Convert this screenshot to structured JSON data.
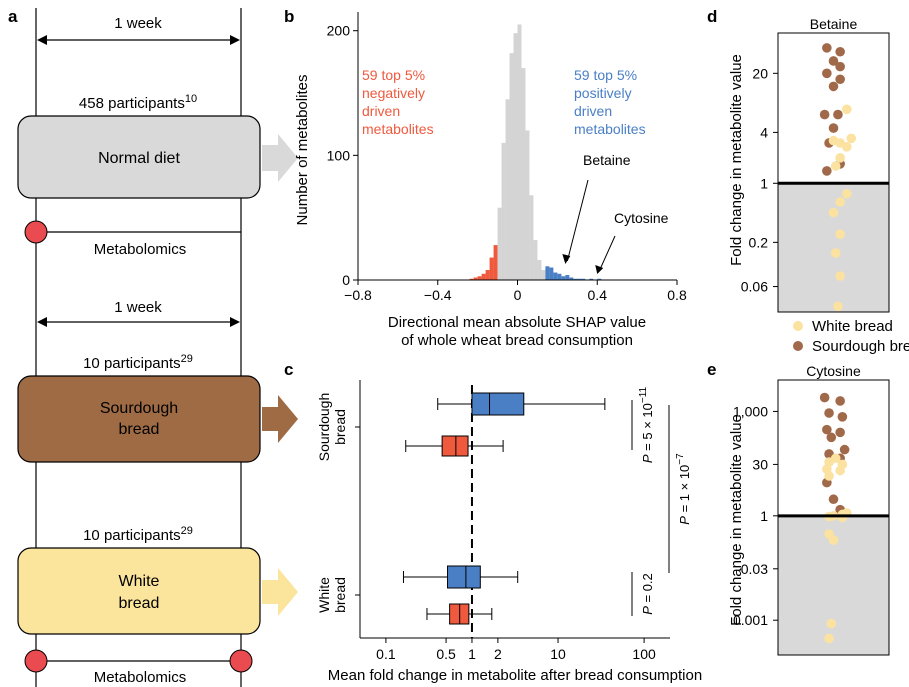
{
  "panel_a": {
    "letter": "a",
    "week_top": "1 week",
    "participants_normal": "458 participants",
    "participants_normal_sup": "10",
    "normal_box": "Normal diet",
    "metabolomics_1": "Metabolomics",
    "week_mid": "1 week",
    "participants_sourdough": "10 participants",
    "participants_sourdough_sup": "29",
    "sourdough_box_line1": "Sourdough",
    "sourdough_box_line2": "bread",
    "participants_white": "10 participants",
    "participants_white_sup": "29",
    "white_box_line1": "White",
    "white_box_line2": "bread",
    "metabolomics_2": "Metabolomics",
    "colors": {
      "normal": "#d9d9d9",
      "sourdough": "#9e6b45",
      "white": "#fbe49b",
      "circle": "#ea4b50"
    }
  },
  "chart_data": [
    {
      "panel": "b",
      "type": "bar",
      "ylabel": "Number of metabolites",
      "xlabel_line1": "Directional mean absolute SHAP value",
      "xlabel_line2": "of whole wheat bread consumption",
      "xlim": [
        -0.8,
        0.8
      ],
      "ylim": [
        0,
        215
      ],
      "xticks": [
        "−0.8",
        "−0.4",
        "0",
        "0.4",
        "0.8"
      ],
      "xtick_values": [
        -0.8,
        -0.4,
        0,
        0.4,
        0.8
      ],
      "yticks": [
        "0",
        "100",
        "200"
      ],
      "ytick_values": [
        0,
        100,
        200
      ],
      "bin_width": 0.02,
      "bins": [
        {
          "x0": -0.24,
          "count": 1,
          "group": "negative"
        },
        {
          "x0": -0.22,
          "count": 2,
          "group": "negative"
        },
        {
          "x0": -0.2,
          "count": 3,
          "group": "negative"
        },
        {
          "x0": -0.18,
          "count": 5,
          "group": "negative"
        },
        {
          "x0": -0.16,
          "count": 8,
          "group": "negative"
        },
        {
          "x0": -0.14,
          "count": 18,
          "group": "negative"
        },
        {
          "x0": -0.12,
          "count": 28,
          "group": "negative"
        },
        {
          "x0": -0.1,
          "count": 58,
          "group": "other"
        },
        {
          "x0": -0.08,
          "count": 110,
          "group": "other"
        },
        {
          "x0": -0.06,
          "count": 145,
          "group": "other"
        },
        {
          "x0": -0.04,
          "count": 182,
          "group": "other"
        },
        {
          "x0": -0.02,
          "count": 198,
          "group": "other"
        },
        {
          "x0": 0.0,
          "count": 205,
          "group": "other"
        },
        {
          "x0": 0.02,
          "count": 170,
          "group": "other"
        },
        {
          "x0": 0.04,
          "count": 120,
          "group": "other"
        },
        {
          "x0": 0.06,
          "count": 68,
          "group": "other"
        },
        {
          "x0": 0.08,
          "count": 32,
          "group": "other"
        },
        {
          "x0": 0.1,
          "count": 16,
          "group": "other"
        },
        {
          "x0": 0.12,
          "count": 8,
          "group": "other"
        },
        {
          "x0": 0.14,
          "count": 11,
          "group": "positive"
        },
        {
          "x0": 0.16,
          "count": 10,
          "group": "positive"
        },
        {
          "x0": 0.18,
          "count": 6,
          "group": "positive"
        },
        {
          "x0": 0.2,
          "count": 5,
          "group": "positive"
        },
        {
          "x0": 0.22,
          "count": 3,
          "group": "positive"
        },
        {
          "x0": 0.24,
          "count": 4,
          "group": "positive"
        },
        {
          "x0": 0.26,
          "count": 2,
          "group": "positive"
        },
        {
          "x0": 0.28,
          "count": 1,
          "group": "positive"
        },
        {
          "x0": 0.3,
          "count": 1,
          "group": "positive"
        },
        {
          "x0": 0.32,
          "count": 1,
          "group": "positive"
        },
        {
          "x0": 0.36,
          "count": 1,
          "group": "positive"
        },
        {
          "x0": 0.4,
          "count": 1,
          "group": "positive"
        }
      ],
      "annotation_negative": [
        "59 top 5%",
        "negatively",
        "driven",
        "metabolites"
      ],
      "annotation_positive": [
        "59 top 5%",
        "positively",
        "driven",
        "metabolites"
      ],
      "arrow_betaine": {
        "label": "Betaine",
        "x": 0.24,
        "y": 12
      },
      "arrow_cytosine": {
        "label": "Cytosine",
        "x": 0.4,
        "y": 4
      },
      "colors": {
        "negative": "#ef5a3e",
        "positive": "#4a7fc6",
        "other": "#d4d4d4"
      }
    },
    {
      "panel": "c",
      "type": "box",
      "xlabel": "Mean fold change in metabolite after bread consumption",
      "xscale": "log",
      "xlim": [
        0.05,
        200
      ],
      "xticks": [
        "0.1",
        "0.5",
        "1",
        "2",
        "10",
        "100"
      ],
      "xtick_values": [
        0.1,
        0.5,
        1,
        2,
        10,
        100
      ],
      "reference_line": 1,
      "groups": [
        {
          "label_line1": "Sourdough",
          "label_line2": "bread",
          "boxes": [
            {
              "color": "positive",
              "whisker_low": 0.4,
              "q1": 1.0,
              "median": 1.6,
              "q3": 4.0,
              "whisker_high": 35
            },
            {
              "color": "negative",
              "whisker_low": 0.17,
              "q1": 0.45,
              "median": 0.65,
              "q3": 0.9,
              "whisker_high": 2.3
            }
          ]
        },
        {
          "label_line1": "White",
          "label_line2": "bread",
          "boxes": [
            {
              "color": "positive",
              "whisker_low": 0.16,
              "q1": 0.52,
              "median": 0.85,
              "q3": 1.25,
              "whisker_high": 3.4
            },
            {
              "color": "negative",
              "whisker_low": 0.3,
              "q1": 0.55,
              "median": 0.72,
              "q3": 0.92,
              "whisker_high": 1.7
            }
          ]
        }
      ],
      "pvalues": [
        {
          "text": "P = 5 × 10",
          "sup": "−11"
        },
        {
          "text": "P = 1 × 10",
          "sup": "−7"
        },
        {
          "text": "P = 0.2",
          "sup": ""
        }
      ],
      "colors": {
        "negative": "#ef5a3e",
        "positive": "#4a7fc6"
      }
    },
    {
      "panel": "d",
      "type": "scatter",
      "title": "Betaine",
      "ylabel": "Fold change in metabolite value",
      "yscale": "log",
      "ylim": [
        0.03,
        60
      ],
      "yticks": [
        "20",
        "4",
        "1",
        "0.2",
        "0.06"
      ],
      "ytick_values": [
        20,
        4,
        1,
        0.2,
        0.06
      ],
      "reference_line": 1,
      "series": [
        {
          "name": "Sourdough bread",
          "color": "#a0694a",
          "x": [
            0.44,
            0.56,
            0.5,
            0.56,
            0.44,
            0.56,
            0.5,
            0.42,
            0.54,
            0.5,
            0.46,
            0.56,
            0.44
          ],
          "y": [
            40,
            36,
            28,
            24,
            20,
            17,
            14,
            6.5,
            6.5,
            4.5,
            3,
            1.7,
            1.4
          ]
        },
        {
          "name": "White bread",
          "color": "#fbe2a0",
          "x": [
            0.62,
            0.66,
            0.5,
            0.56,
            0.62,
            0.56,
            0.52,
            0.62,
            0.56,
            0.5,
            0.56,
            0.52,
            0.56,
            0.54
          ],
          "y": [
            7.5,
            3.4,
            3.2,
            3,
            2.7,
            2,
            1.6,
            0.75,
            0.6,
            0.45,
            0.25,
            0.15,
            0.08,
            0.035
          ]
        }
      ],
      "legend": [
        "White bread",
        "Sourdough bread"
      ]
    },
    {
      "panel": "e",
      "type": "scatter",
      "title": "Cytosine",
      "ylabel": "Fold change in metabolite value",
      "yscale": "log",
      "ylim": [
        0.0001,
        8000
      ],
      "yticks": [
        "1,000",
        "30",
        "1",
        "0.03",
        "0.001"
      ],
      "ytick_values": [
        1000,
        30,
        1,
        0.03,
        0.001
      ],
      "reference_line": 1,
      "series": [
        {
          "name": "Sourdough bread",
          "color": "#a0694a",
          "x": [
            0.42,
            0.56,
            0.46,
            0.58,
            0.44,
            0.56,
            0.48,
            0.6,
            0.46,
            0.56,
            0.44,
            0.5,
            0.56
          ],
          "y": [
            2500,
            2000,
            900,
            700,
            300,
            250,
            180,
            80,
            60,
            45,
            9,
            3,
            1.5
          ]
        },
        {
          "name": "White bread",
          "color": "#fbe2a0",
          "x": [
            0.52,
            0.46,
            0.58,
            0.44,
            0.56,
            0.46,
            0.62,
            0.58,
            0.5,
            0.46,
            0.58,
            0.46,
            0.5,
            0.48,
            0.46
          ],
          "y": [
            45,
            35,
            30,
            22,
            20,
            14,
            1.2,
            1.1,
            1.0,
            0.95,
            0.9,
            0.3,
            0.2,
            0.0008,
            0.0003
          ]
        }
      ],
      "legend": []
    }
  ]
}
